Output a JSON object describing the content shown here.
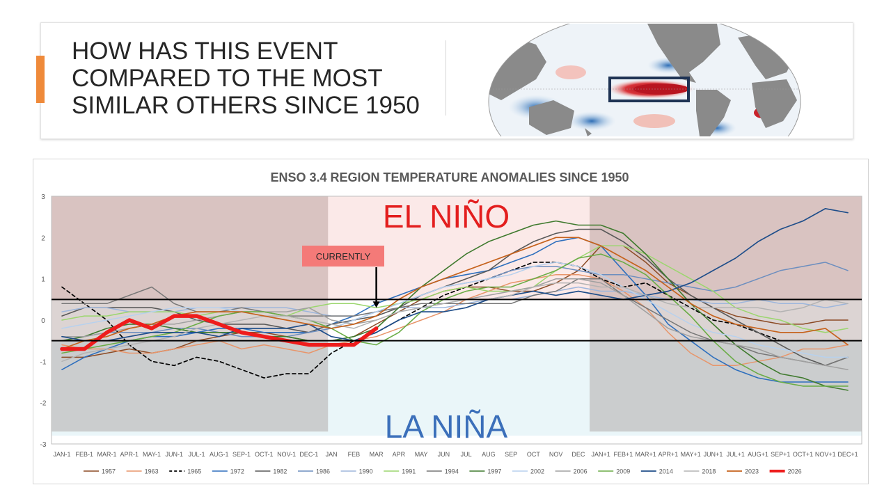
{
  "slide": {
    "title": "HOW HAS THIS EVENT COMPARED TO THE MOST SIMILAR OTHERS SINCE 1950",
    "accent_color": "#ef8a3a"
  },
  "map": {
    "description_icon": "sst-anomaly-world-map",
    "highlight_box_color": "#1f3354"
  },
  "chart_data": {
    "type": "line",
    "title": "ENSO 3.4 REGION TEMPERATURE ANOMALIES SINCE 1950",
    "ylim": [
      -3,
      3
    ],
    "yticks": [
      3,
      2,
      1,
      0,
      -1,
      -2,
      -3
    ],
    "el_nino_threshold": 0.5,
    "la_nina_threshold": -0.5,
    "el_nino_label": "EL NIÑO",
    "la_nina_label": "LA NIÑA",
    "annotation": {
      "label": "CURRENTLY",
      "x_index": 14,
      "y_from": 1.3,
      "y_to": 0.3
    },
    "categories": [
      "JAN-1",
      "FEB-1",
      "MAR-1",
      "APR-1",
      "MAY-1",
      "JUN-1",
      "JUL-1",
      "AUG-1",
      "SEP-1",
      "OCT-1",
      "NOV-1",
      "DEC-1",
      "JAN",
      "FEB",
      "MAR",
      "APR",
      "MAY",
      "JUN",
      "JUL",
      "AUG",
      "SEP",
      "OCT",
      "NOV",
      "DEC",
      "JAN+1",
      "FEB+1",
      "MAR+1",
      "APR+1",
      "MAY+1",
      "JUN+1",
      "JUL+1",
      "AUG+1",
      "SEP+1",
      "OCT+1",
      "NOV+1",
      "DEC+1"
    ],
    "series": [
      {
        "name": "1957",
        "color": "#8b4a24",
        "dash": false,
        "width": 1.5,
        "values": [
          -0.9,
          -0.9,
          -0.8,
          -0.7,
          -0.8,
          -0.7,
          -0.5,
          -0.4,
          -0.3,
          -0.3,
          -0.4,
          -0.5,
          -0.5,
          -0.4,
          -0.1,
          0.2,
          0.5,
          0.7,
          0.8,
          0.8,
          0.7,
          0.7,
          0.9,
          1.2,
          1.8,
          1.8,
          1.4,
          0.9,
          0.6,
          0.3,
          0.1,
          0.0,
          -0.1,
          -0.1,
          0.0,
          0.0
        ]
      },
      {
        "name": "1963",
        "color": "#e8956a",
        "dash": false,
        "width": 1.5,
        "values": [
          -0.6,
          -0.7,
          -0.7,
          -0.8,
          -0.8,
          -0.7,
          -0.6,
          -0.5,
          -0.7,
          -0.6,
          -0.7,
          -0.8,
          -0.6,
          -0.5,
          -0.4,
          -0.2,
          0.0,
          0.2,
          0.5,
          0.7,
          0.9,
          1.0,
          1.1,
          1.1,
          1.0,
          0.7,
          0.3,
          -0.3,
          -0.8,
          -1.1,
          -1.1,
          -1.0,
          -0.9,
          -0.7,
          -0.7,
          -0.6
        ]
      },
      {
        "name": "1965",
        "color": "#000000",
        "dash": true,
        "width": 1.7,
        "values": [
          0.8,
          0.4,
          0.0,
          -0.6,
          -1.0,
          -1.1,
          -0.9,
          -1.0,
          -1.2,
          -1.4,
          -1.3,
          -1.3,
          -0.8,
          -0.5,
          -0.3,
          0.0,
          0.3,
          0.6,
          0.8,
          1.0,
          1.2,
          1.4,
          1.4,
          1.3,
          1.0,
          0.8,
          0.9,
          0.6,
          0.3,
          0.0,
          -0.1,
          -0.3,
          -0.5,
          -0.5,
          -0.5,
          -0.5
        ]
      },
      {
        "name": "1972",
        "color": "#2e6fbd",
        "dash": false,
        "width": 1.6,
        "values": [
          -1.2,
          -0.9,
          -0.7,
          -0.5,
          -0.4,
          -0.4,
          -0.3,
          -0.2,
          -0.2,
          -0.3,
          -0.3,
          -0.3,
          -0.1,
          0.1,
          0.4,
          0.6,
          0.8,
          1.0,
          1.1,
          1.2,
          1.4,
          1.6,
          1.9,
          2.0,
          1.8,
          1.2,
          0.6,
          -0.1,
          -0.5,
          -0.9,
          -1.2,
          -1.4,
          -1.5,
          -1.5,
          -1.5,
          -1.5
        ]
      },
      {
        "name": "1982",
        "color": "#595959",
        "dash": false,
        "width": 1.6,
        "values": [
          0.1,
          0.3,
          0.3,
          0.3,
          0.3,
          0.2,
          0.0,
          -0.1,
          -0.1,
          -0.1,
          -0.2,
          -0.3,
          -0.1,
          0.0,
          0.1,
          0.3,
          0.6,
          0.8,
          1.0,
          1.2,
          1.6,
          1.9,
          2.1,
          2.2,
          2.2,
          1.9,
          1.5,
          1.0,
          0.6,
          0.3,
          0.0,
          -0.3,
          -0.6,
          -0.9,
          -1.1,
          -0.9
        ]
      },
      {
        "name": "1986",
        "color": "#6c8ebf",
        "dash": false,
        "width": 1.5,
        "values": [
          -0.5,
          -0.4,
          -0.3,
          -0.3,
          -0.3,
          -0.2,
          -0.2,
          -0.3,
          -0.4,
          -0.4,
          -0.4,
          -0.3,
          -0.2,
          0.0,
          0.2,
          0.4,
          0.6,
          0.8,
          0.9,
          1.0,
          1.2,
          1.3,
          1.3,
          1.2,
          1.1,
          1.1,
          1.0,
          0.9,
          0.8,
          0.7,
          0.8,
          1.0,
          1.2,
          1.3,
          1.4,
          1.2
        ]
      },
      {
        "name": "1990",
        "color": "#9db6dc",
        "dash": false,
        "width": 1.5,
        "values": [
          0.2,
          0.3,
          0.3,
          0.2,
          0.2,
          0.2,
          0.3,
          0.3,
          0.3,
          0.3,
          0.3,
          0.2,
          0.1,
          0.1,
          0.2,
          0.3,
          0.3,
          0.3,
          0.4,
          0.5,
          0.5,
          0.6,
          0.7,
          0.8,
          0.7,
          0.7,
          0.6,
          0.5,
          0.5,
          0.4,
          0.4,
          0.5,
          0.4,
          0.4,
          0.3,
          0.4
        ]
      },
      {
        "name": "1991",
        "color": "#9bd66e",
        "dash": false,
        "width": 1.5,
        "values": [
          0.0,
          0.1,
          0.1,
          0.2,
          0.2,
          0.2,
          0.1,
          0.2,
          0.2,
          0.2,
          0.1,
          0.3,
          0.4,
          0.4,
          0.3,
          0.4,
          0.5,
          0.7,
          0.8,
          0.7,
          0.7,
          0.8,
          1.2,
          1.5,
          1.8,
          1.8,
          1.6,
          1.3,
          1.0,
          0.7,
          0.3,
          0.1,
          0.0,
          -0.2,
          -0.3,
          -0.2
        ]
      },
      {
        "name": "1994",
        "color": "#777777",
        "dash": false,
        "width": 1.5,
        "values": [
          0.4,
          0.4,
          0.4,
          0.6,
          0.8,
          0.4,
          0.2,
          0.2,
          0.3,
          0.2,
          0.1,
          0.1,
          0.1,
          0.1,
          0.2,
          0.3,
          0.4,
          0.4,
          0.4,
          0.4,
          0.4,
          0.6,
          0.7,
          1.0,
          1.0,
          0.6,
          0.3,
          0.0,
          -0.3,
          -0.5,
          -0.6,
          -0.8,
          -0.9,
          -1.0,
          -1.1,
          -0.9
        ]
      },
      {
        "name": "1997",
        "color": "#3f7a2e",
        "dash": false,
        "width": 1.6,
        "values": [
          -0.5,
          -0.4,
          -0.2,
          -0.1,
          -0.1,
          -0.2,
          -0.3,
          -0.3,
          -0.3,
          -0.4,
          -0.4,
          -0.5,
          -0.5,
          -0.4,
          -0.2,
          0.3,
          0.8,
          1.2,
          1.6,
          1.9,
          2.1,
          2.3,
          2.4,
          2.3,
          2.3,
          2.1,
          1.6,
          1.0,
          0.4,
          -0.1,
          -0.6,
          -1.0,
          -1.3,
          -1.4,
          -1.6,
          -1.7
        ]
      },
      {
        "name": "2002",
        "color": "#b7d1ee",
        "dash": false,
        "width": 1.5,
        "values": [
          -0.2,
          -0.1,
          0.0,
          0.1,
          0.2,
          0.3,
          0.3,
          0.3,
          0.2,
          0.1,
          0.0,
          -0.1,
          -0.2,
          0.0,
          0.2,
          0.4,
          0.6,
          0.8,
          0.9,
          1.0,
          1.1,
          1.3,
          1.4,
          1.3,
          1.1,
          0.8,
          0.5,
          0.2,
          -0.1,
          -0.3,
          -0.4,
          -0.6,
          -0.7,
          -0.8,
          -0.9,
          -0.9
        ]
      },
      {
        "name": "2006",
        "color": "#a0a0a0",
        "dash": false,
        "width": 1.5,
        "values": [
          -0.4,
          -0.4,
          -0.3,
          -0.2,
          -0.1,
          -0.1,
          0.0,
          0.1,
          0.2,
          0.2,
          0.2,
          0.3,
          0.0,
          -0.1,
          0.0,
          0.2,
          0.3,
          0.4,
          0.5,
          0.6,
          0.7,
          0.8,
          1.0,
          1.0,
          0.9,
          0.6,
          0.2,
          -0.2,
          -0.4,
          -0.5,
          -0.6,
          -0.7,
          -0.9,
          -1.0,
          -1.1,
          -1.2
        ]
      },
      {
        "name": "2009",
        "color": "#6aac46",
        "dash": false,
        "width": 1.6,
        "values": [
          -0.8,
          -0.7,
          -0.6,
          -0.5,
          -0.4,
          -0.3,
          -0.1,
          0.1,
          0.2,
          0.2,
          0.1,
          0.0,
          -0.2,
          -0.5,
          -0.6,
          -0.3,
          0.2,
          0.5,
          0.7,
          0.8,
          0.8,
          1.0,
          1.2,
          1.5,
          1.6,
          1.4,
          1.1,
          0.6,
          0.1,
          -0.5,
          -1.0,
          -1.3,
          -1.5,
          -1.6,
          -1.6,
          -1.6
        ]
      },
      {
        "name": "2014",
        "color": "#1f4e8a",
        "dash": false,
        "width": 1.7,
        "values": [
          -0.4,
          -0.5,
          -0.5,
          -0.4,
          -0.3,
          -0.3,
          -0.3,
          -0.4,
          -0.2,
          -0.2,
          -0.2,
          -0.1,
          -0.4,
          -0.5,
          -0.3,
          0.0,
          0.2,
          0.2,
          0.3,
          0.5,
          0.6,
          0.7,
          0.6,
          0.7,
          0.6,
          0.5,
          0.6,
          0.7,
          0.9,
          1.2,
          1.5,
          1.9,
          2.2,
          2.4,
          2.7,
          2.6
        ]
      },
      {
        "name": "2018",
        "color": "#b3b3b3",
        "dash": false,
        "width": 1.5,
        "values": [
          -1.0,
          -0.8,
          -0.7,
          -0.6,
          -0.5,
          -0.4,
          -0.2,
          -0.1,
          0.0,
          0.1,
          0.1,
          0.0,
          -0.1,
          -0.2,
          0.0,
          0.2,
          0.3,
          0.4,
          0.5,
          0.5,
          0.6,
          0.8,
          0.9,
          0.9,
          0.8,
          0.8,
          0.6,
          0.4,
          0.3,
          0.3,
          0.3,
          0.3,
          0.2,
          0.3,
          0.5,
          0.4
        ]
      },
      {
        "name": "2023",
        "color": "#c6621c",
        "dash": false,
        "width": 1.7,
        "values": [
          -0.7,
          -0.5,
          -0.4,
          -0.2,
          -0.1,
          0.1,
          0.2,
          0.2,
          0.2,
          0.1,
          0.0,
          -0.1,
          -0.2,
          -0.1,
          0.1,
          0.5,
          0.8,
          1.0,
          1.2,
          1.4,
          1.6,
          1.8,
          2.0,
          2.0,
          1.8,
          1.5,
          1.2,
          0.8,
          0.4,
          0.1,
          -0.1,
          -0.2,
          -0.3,
          -0.3,
          -0.2,
          -0.6
        ]
      },
      {
        "name": "2026",
        "color": "#ee1c1c",
        "dash": false,
        "width": 5.5,
        "values": [
          -0.7,
          -0.7,
          -0.3,
          0.0,
          -0.2,
          0.1,
          0.1,
          -0.1,
          -0.3,
          -0.4,
          -0.5,
          -0.6,
          -0.6,
          -0.6,
          -0.2,
          null,
          null,
          null,
          null,
          null,
          null,
          null,
          null,
          null,
          null,
          null,
          null,
          null,
          null,
          null,
          null,
          null,
          null,
          null,
          null,
          null
        ]
      }
    ]
  }
}
